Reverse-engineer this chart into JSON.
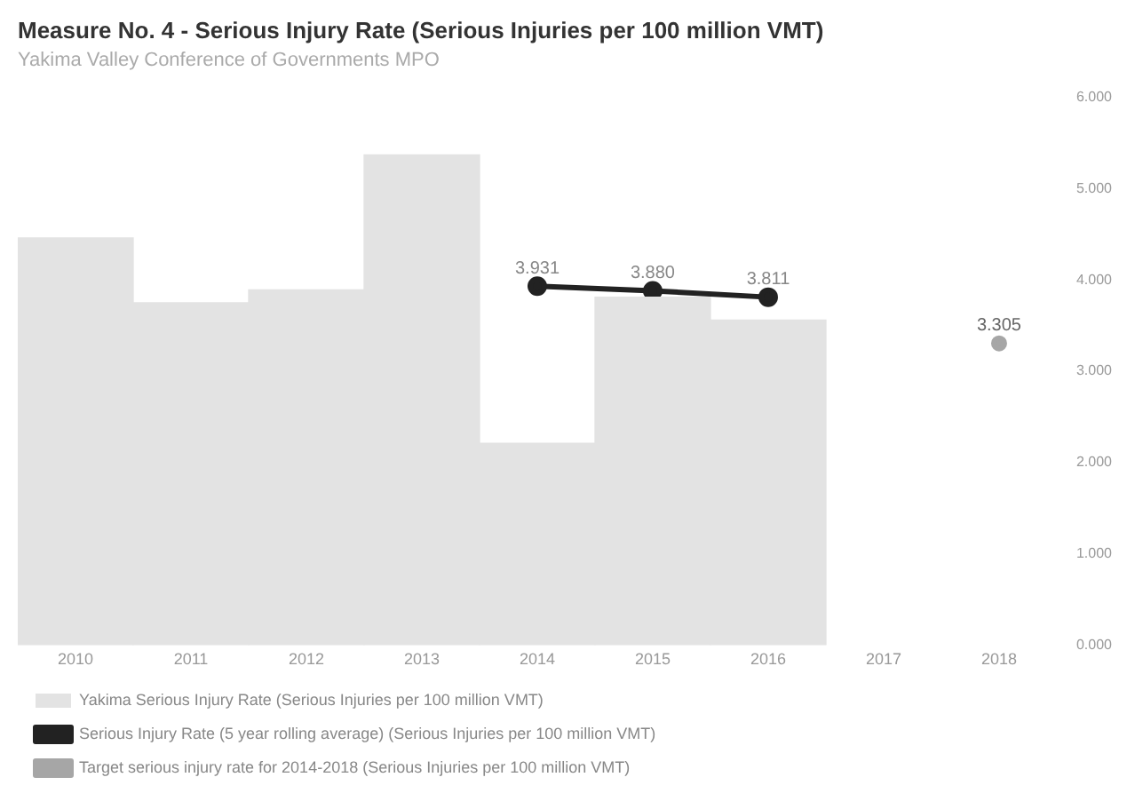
{
  "chart_data": {
    "type": "bar",
    "title": "Measure No. 4 - Serious Injury Rate (Serious Injuries per 100 million VMT)",
    "subtitle": "Yakima Valley Conference of Governments MPO",
    "categories": [
      "2010",
      "2011",
      "2012",
      "2013",
      "2014",
      "2015",
      "2016",
      "2017",
      "2018"
    ],
    "series": [
      {
        "name": "Yakima Serious Injury Rate (Serious Injuries per 100 million VMT)",
        "color": "#e3e3e3",
        "values": [
          4.46,
          3.75,
          3.89,
          5.37,
          2.21,
          3.81,
          3.56,
          null,
          null
        ]
      },
      {
        "name": "Serious Injury Rate (5 year rolling average) (Serious Injuries per 100 million VMT)",
        "type": "line",
        "color": "#222222",
        "values": [
          null,
          null,
          null,
          null,
          3.931,
          3.88,
          3.811,
          null,
          null
        ],
        "value_labels": [
          null,
          null,
          null,
          null,
          "3.931",
          "3.880",
          "3.811",
          null,
          null
        ]
      },
      {
        "name": "Target serious injury rate for 2014-2018 (Serious Injuries per 100 million VMT)",
        "type": "scatter",
        "color": "#a6a6a6",
        "values": [
          null,
          null,
          null,
          null,
          null,
          null,
          null,
          null,
          3.305
        ],
        "value_labels": [
          null,
          null,
          null,
          null,
          null,
          null,
          null,
          null,
          "3.305"
        ]
      }
    ],
    "ylim": [
      0,
      6
    ],
    "yticks": [
      {
        "value": 0,
        "label": "0.000"
      },
      {
        "value": 1,
        "label": "1.000"
      },
      {
        "value": 2,
        "label": "2.000"
      },
      {
        "value": 3,
        "label": "3.000"
      },
      {
        "value": 4,
        "label": "4.000"
      },
      {
        "value": 5,
        "label": "5.000"
      },
      {
        "value": 6,
        "label": "6.000"
      }
    ],
    "grid": false,
    "legend": "bottom",
    "marker": "circle"
  }
}
